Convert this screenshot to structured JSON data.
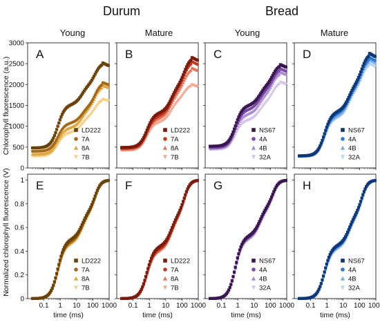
{
  "headers": {
    "group_left": "Durum",
    "group_right": "Bread",
    "columns": [
      "Young",
      "Mature",
      "Young",
      "Mature"
    ]
  },
  "axes": {
    "ylabel_top": "Chlorophyll fluorescence (a.u.)",
    "ylabel_bottom": "Normalized chlorophyll fluorescence (V)",
    "xlabel": "time (ms)",
    "x_ticks": [
      "0.1",
      "1",
      "10",
      "100",
      "1000"
    ],
    "y_ticks_top": [
      "0",
      "500",
      "1000",
      "1500",
      "2000",
      "2500",
      "3000"
    ],
    "y_ticks_bottom": [
      "0",
      "0.2",
      "0.4",
      "0.6",
      "0.8",
      "1"
    ]
  },
  "palettes": {
    "durum_young": [
      "#6b4207",
      "#a56a17",
      "#e0a53c",
      "#f5d088"
    ],
    "durum_mature": [
      "#7b1a0d",
      "#bf3a21",
      "#e8735a",
      "#f4a88f"
    ],
    "bread_young": [
      "#3a164f",
      "#7a4aa9",
      "#ab8bd1",
      "#d5c4eb"
    ],
    "bread_mature": [
      "#0e3778",
      "#2e78d5",
      "#78aee5",
      "#b8d4f1"
    ]
  },
  "chart_data": [
    {
      "panel": "A",
      "type": "scatter",
      "x_scale": "log",
      "xlim": [
        0.01,
        1000
      ],
      "ylim": [
        0,
        3000
      ],
      "xlabel": "time (ms)",
      "ylabel": "Chlorophyll fluorescence (a.u.)",
      "legend": [
        "LD222",
        "7A",
        "8A",
        "7B"
      ],
      "series": [
        {
          "name": "LD222",
          "F0": 480,
          "J": 1520,
          "I": 2020,
          "P": 2520
        },
        {
          "name": "7A",
          "F0": 400,
          "J": 1080,
          "I": 1500,
          "P": 2050
        },
        {
          "name": "8A",
          "F0": 330,
          "J": 970,
          "I": 1450,
          "P": 1980
        },
        {
          "name": "7B",
          "F0": 280,
          "J": 850,
          "I": 1250,
          "P": 1650
        }
      ]
    },
    {
      "panel": "B",
      "type": "scatter",
      "x_scale": "log",
      "xlim": [
        0.01,
        1000
      ],
      "ylim": [
        0,
        3000
      ],
      "xlabel": "time (ms)",
      "legend": [
        "LD222",
        "7A",
        "8A",
        "7B"
      ],
      "series": [
        {
          "name": "LD222",
          "F0": 490,
          "J": 1320,
          "I": 2000,
          "P": 2650
        },
        {
          "name": "7A",
          "F0": 470,
          "J": 1250,
          "I": 1950,
          "P": 2550
        },
        {
          "name": "8A",
          "F0": 450,
          "J": 1200,
          "I": 1850,
          "P": 2400
        },
        {
          "name": "7B",
          "F0": 420,
          "J": 1100,
          "I": 1650,
          "P": 2000
        }
      ]
    },
    {
      "panel": "C",
      "type": "scatter",
      "x_scale": "log",
      "xlim": [
        0.01,
        1000
      ],
      "ylim": [
        0,
        3000
      ],
      "xlabel": "time (ms)",
      "legend": [
        "NS67",
        "4A",
        "4B",
        "32A"
      ],
      "series": [
        {
          "name": "NS67",
          "F0": 520,
          "J": 1500,
          "I": 2000,
          "P": 2480
        },
        {
          "name": "4A",
          "F0": 490,
          "J": 1400,
          "I": 1900,
          "P": 2380
        },
        {
          "name": "4B",
          "F0": 470,
          "J": 1300,
          "I": 1800,
          "P": 2300
        },
        {
          "name": "32A",
          "F0": 440,
          "J": 1150,
          "I": 1600,
          "P": 2060
        }
      ]
    },
    {
      "panel": "D",
      "type": "scatter",
      "x_scale": "log",
      "xlim": [
        0.01,
        1000
      ],
      "ylim": [
        0,
        3000
      ],
      "xlabel": "time (ms)",
      "legend": [
        "NS67",
        "4A",
        "4B",
        "32A"
      ],
      "series": [
        {
          "name": "NS67",
          "F0": 290,
          "J": 1350,
          "I": 2050,
          "P": 2750
        },
        {
          "name": "4A",
          "F0": 285,
          "J": 1300,
          "I": 2000,
          "P": 2650
        },
        {
          "name": "4B",
          "F0": 280,
          "J": 1250,
          "I": 1950,
          "P": 2600
        },
        {
          "name": "32A",
          "F0": 275,
          "J": 1200,
          "I": 1900,
          "P": 2500
        }
      ]
    },
    {
      "panel": "E",
      "type": "scatter",
      "x_scale": "log",
      "xlim": [
        0.01,
        1000
      ],
      "ylim": [
        0,
        1.05
      ],
      "xlabel": "time (ms)",
      "ylabel": "Normalized chlorophyll fluorescence (V)",
      "legend": [
        "LD222",
        "7A",
        "8A",
        "7B"
      ],
      "series": [
        {
          "name": "LD222",
          "J": 0.5,
          "I": 0.75
        },
        {
          "name": "7A",
          "J": 0.48,
          "I": 0.74
        },
        {
          "name": "8A",
          "J": 0.47,
          "I": 0.73
        },
        {
          "name": "7B",
          "J": 0.46,
          "I": 0.72
        }
      ]
    },
    {
      "panel": "F",
      "type": "scatter",
      "x_scale": "log",
      "xlim": [
        0.01,
        1000
      ],
      "ylim": [
        0,
        1.05
      ],
      "xlabel": "time (ms)",
      "legend": [
        "LD222",
        "7A",
        "8A",
        "7B"
      ],
      "series": [
        {
          "name": "LD222",
          "J": 0.44,
          "I": 0.72
        },
        {
          "name": "7A",
          "J": 0.42,
          "I": 0.71
        },
        {
          "name": "8A",
          "J": 0.41,
          "I": 0.7
        },
        {
          "name": "7B",
          "J": 0.4,
          "I": 0.69
        }
      ]
    },
    {
      "panel": "G",
      "type": "scatter",
      "x_scale": "log",
      "xlim": [
        0.01,
        1000
      ],
      "ylim": [
        0,
        1.05
      ],
      "xlabel": "time (ms)",
      "legend": [
        "NS67",
        "4A",
        "4B",
        "32A"
      ],
      "series": [
        {
          "name": "NS67",
          "J": 0.53,
          "I": 0.78
        },
        {
          "name": "4A",
          "J": 0.52,
          "I": 0.77
        },
        {
          "name": "4B",
          "J": 0.51,
          "I": 0.76
        },
        {
          "name": "32A",
          "J": 0.5,
          "I": 0.75
        }
      ]
    },
    {
      "panel": "H",
      "type": "scatter",
      "x_scale": "log",
      "xlim": [
        0.01,
        1000
      ],
      "ylim": [
        0,
        1.05
      ],
      "xlabel": "time (ms)",
      "legend": [
        "NS67",
        "4A",
        "4B",
        "32A"
      ],
      "series": [
        {
          "name": "NS67",
          "J": 0.45,
          "I": 0.72
        },
        {
          "name": "4A",
          "J": 0.44,
          "I": 0.71
        },
        {
          "name": "4B",
          "J": 0.43,
          "I": 0.7
        },
        {
          "name": "32A",
          "J": 0.42,
          "I": 0.69
        }
      ]
    }
  ]
}
